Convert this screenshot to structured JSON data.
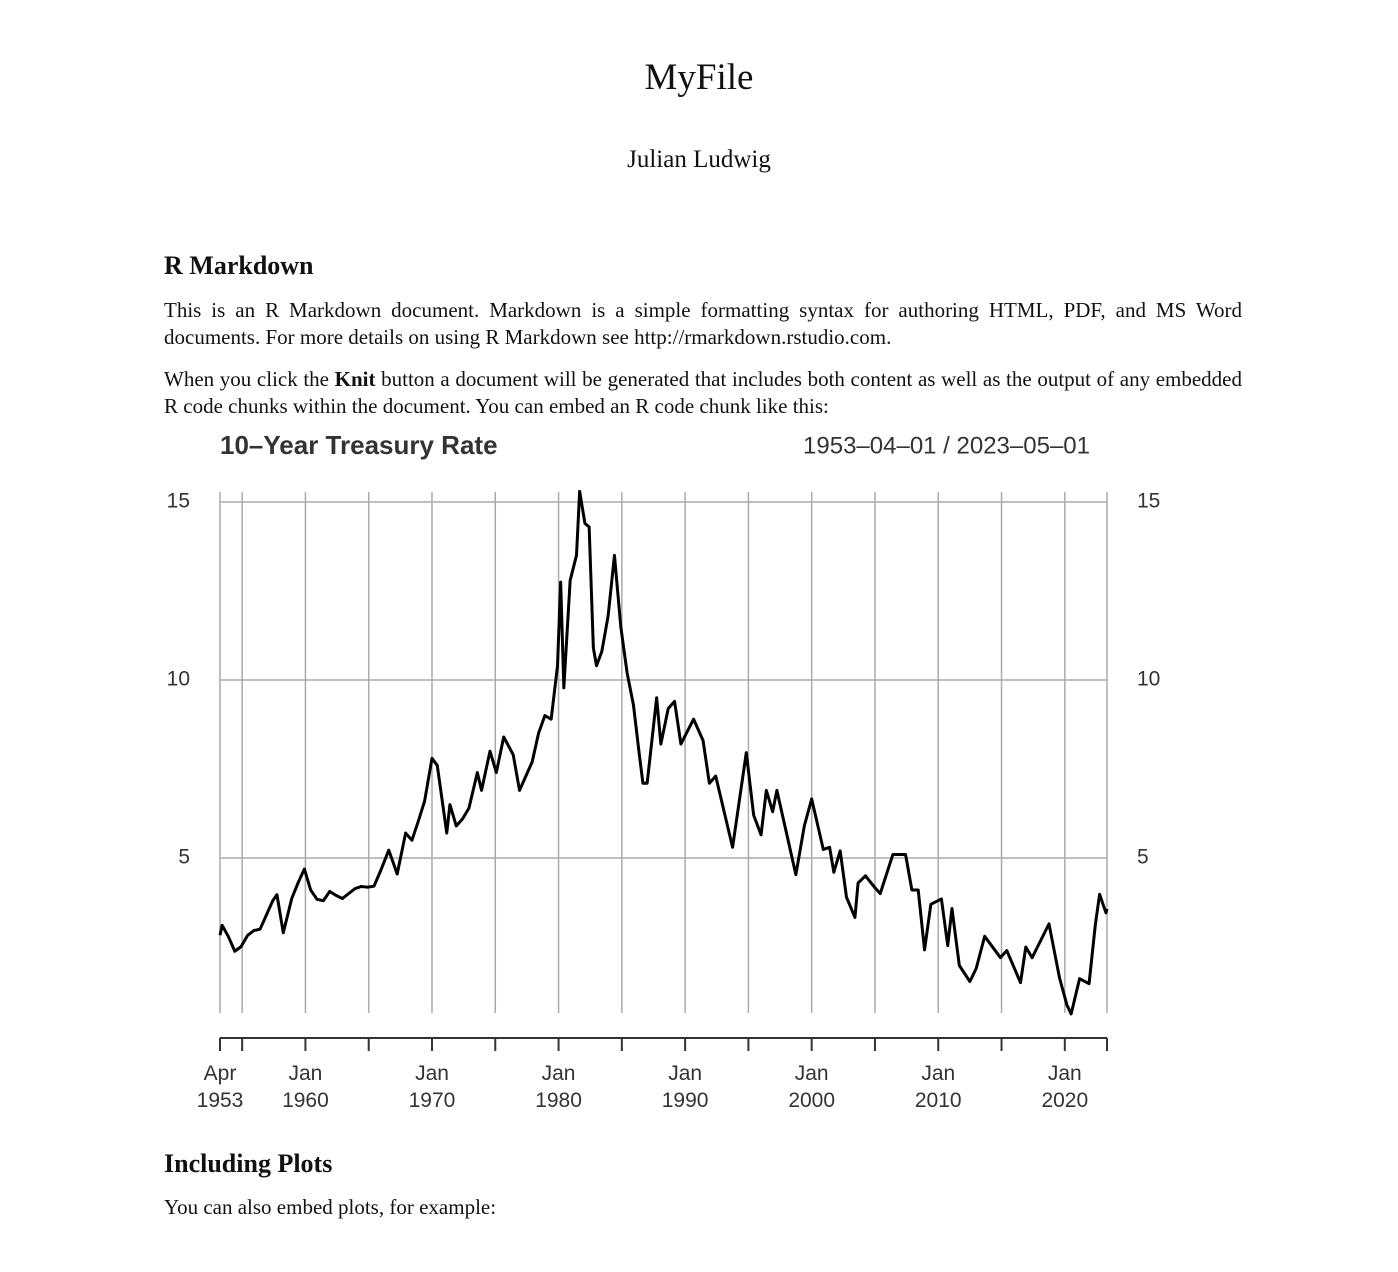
{
  "header": {
    "title": "MyFile",
    "author": "Julian Ludwig"
  },
  "sections": [
    {
      "heading": "R Markdown",
      "paragraphs": [
        "This is an R Markdown document. Markdown is a simple formatting syntax for authoring HTML, PDF, and MS Word documents. For more details on using R Markdown see http://rmarkdown.rstudio.com."
      ],
      "paragraph_rich": [
        "When you click the ",
        "Knit",
        " button a document will be generated that includes both content as well as the output of any embedded R code chunks within the document. You can embed an R code chunk like this:"
      ]
    },
    {
      "heading": "Including Plots",
      "paragraphs": [
        "You can also embed plots, for example:"
      ]
    }
  ],
  "chart_data": {
    "type": "line",
    "title": "10–Year Treasury Rate",
    "subtitle": "1953–04–01 / 2023–05–01",
    "color": "#000000",
    "grid": true,
    "x": [
      "1953-04",
      "1953-06",
      "1953-12",
      "1954-06",
      "1954-12",
      "1955-06",
      "1955-12",
      "1956-06",
      "1956-12",
      "1957-06",
      "1957-10",
      "1958-04",
      "1958-12",
      "1959-06",
      "1959-12",
      "1960-06",
      "1960-12",
      "1961-06",
      "1961-12",
      "1962-06",
      "1962-12",
      "1963-06",
      "1963-12",
      "1964-06",
      "1964-12",
      "1965-06",
      "1965-12",
      "1966-08",
      "1967-04",
      "1967-12",
      "1968-06",
      "1968-12",
      "1969-06",
      "1970-01",
      "1970-06",
      "1971-03",
      "1971-06",
      "1971-12",
      "1972-06",
      "1972-12",
      "1973-08",
      "1973-12",
      "1974-08",
      "1975-02",
      "1975-09",
      "1976-06",
      "1976-12",
      "1977-06",
      "1977-12",
      "1978-06",
      "1978-12",
      "1979-06",
      "1979-12",
      "1980-03",
      "1980-06",
      "1980-12",
      "1981-06",
      "1981-09",
      "1982-02",
      "1982-06",
      "1982-10",
      "1983-01",
      "1983-06",
      "1983-12",
      "1984-06",
      "1984-12",
      "1985-06",
      "1985-12",
      "1986-06",
      "1986-09",
      "1987-01",
      "1987-10",
      "1988-02",
      "1988-09",
      "1989-03",
      "1989-09",
      "1990-09",
      "1991-06",
      "1991-12",
      "1992-06",
      "1993-10",
      "1994-11",
      "1995-06",
      "1996-01",
      "1996-06",
      "1996-12",
      "1997-04",
      "1998-10",
      "1999-06",
      "2000-01",
      "2000-12",
      "2001-06",
      "2001-10",
      "2002-04",
      "2002-10",
      "2003-06",
      "2003-09",
      "2004-04",
      "2004-12",
      "2005-06",
      "2006-06",
      "2007-06",
      "2007-12",
      "2008-06",
      "2008-12",
      "2009-06",
      "2010-04",
      "2010-10",
      "2011-02",
      "2011-09",
      "2012-07",
      "2013-01",
      "2013-09",
      "2014-12",
      "2015-06",
      "2016-07",
      "2016-12",
      "2017-06",
      "2018-10",
      "2019-08",
      "2020-03",
      "2020-07",
      "2021-03",
      "2021-12",
      "2022-06",
      "2022-10",
      "2023-04",
      "2023-05"
    ],
    "values": [
      2.83,
      3.11,
      2.79,
      2.38,
      2.51,
      2.82,
      2.96,
      3.0,
      3.4,
      3.8,
      3.97,
      2.9,
      3.86,
      4.3,
      4.69,
      4.1,
      3.84,
      3.8,
      4.06,
      3.95,
      3.86,
      4.0,
      4.14,
      4.2,
      4.18,
      4.21,
      4.62,
      5.22,
      4.55,
      5.7,
      5.5,
      6.03,
      6.6,
      7.8,
      7.6,
      5.7,
      6.5,
      5.9,
      6.1,
      6.4,
      7.4,
      6.9,
      8.0,
      7.4,
      8.4,
      7.9,
      6.9,
      7.3,
      7.7,
      8.5,
      9.0,
      8.9,
      10.4,
      12.75,
      9.78,
      12.8,
      13.5,
      15.3,
      14.4,
      14.3,
      10.9,
      10.4,
      10.8,
      11.8,
      13.5,
      11.5,
      10.2,
      9.3,
      7.8,
      7.1,
      7.1,
      9.5,
      8.2,
      9.2,
      9.4,
      8.2,
      8.9,
      8.3,
      7.1,
      7.3,
      5.3,
      7.96,
      6.2,
      5.65,
      6.9,
      6.3,
      6.9,
      4.53,
      5.9,
      6.66,
      5.24,
      5.3,
      4.6,
      5.2,
      3.9,
      3.33,
      4.3,
      4.5,
      4.2,
      4.0,
      5.1,
      5.1,
      4.1,
      4.1,
      2.42,
      3.7,
      3.85,
      2.54,
      3.58,
      1.98,
      1.53,
      1.9,
      2.8,
      2.2,
      2.4,
      1.5,
      2.5,
      2.2,
      3.15,
      1.63,
      0.87,
      0.62,
      1.61,
      1.47,
      3.14,
      3.98,
      3.46,
      3.57
    ],
    "xlim": [
      "1953-04",
      "2023-05"
    ],
    "xticks": [
      {
        "value": "1953-04",
        "label": [
          "Apr",
          "1953"
        ]
      },
      {
        "value": "1955-01",
        "label": null
      },
      {
        "value": "1960-01",
        "label": [
          "Jan",
          "1960"
        ]
      },
      {
        "value": "1965-01",
        "label": null
      },
      {
        "value": "1970-01",
        "label": [
          "Jan",
          "1970"
        ]
      },
      {
        "value": "1975-01",
        "label": null
      },
      {
        "value": "1980-01",
        "label": [
          "Jan",
          "1980"
        ]
      },
      {
        "value": "1985-01",
        "label": null
      },
      {
        "value": "1990-01",
        "label": [
          "Jan",
          "1990"
        ]
      },
      {
        "value": "1995-01",
        "label": null
      },
      {
        "value": "2000-01",
        "label": [
          "Jan",
          "2000"
        ]
      },
      {
        "value": "2005-01",
        "label": null
      },
      {
        "value": "2010-01",
        "label": [
          "Jan",
          "2010"
        ]
      },
      {
        "value": "2015-01",
        "label": null
      },
      {
        "value": "2020-01",
        "label": [
          "Jan",
          "2020"
        ]
      },
      {
        "value": "2023-05",
        "label": null
      }
    ],
    "ylim": [
      0.6,
      15.3
    ],
    "yticks": [
      5,
      10,
      15
    ]
  }
}
